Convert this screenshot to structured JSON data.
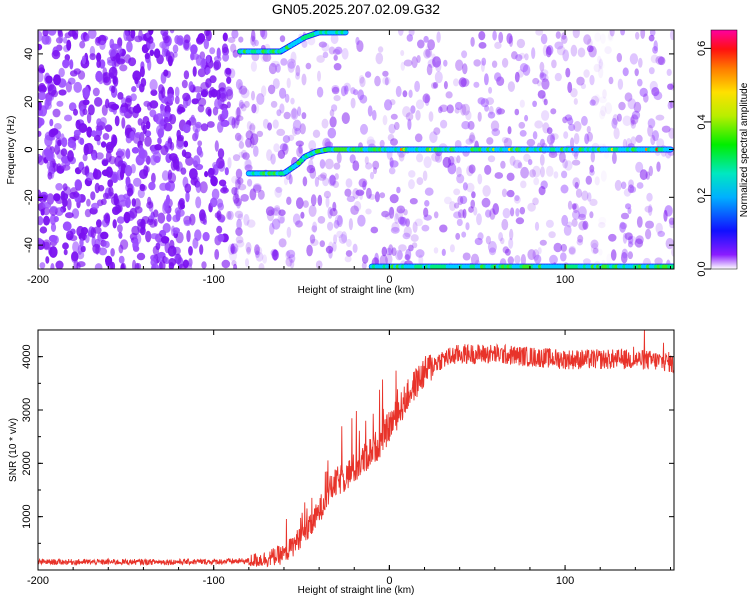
{
  "title": "GN05.2025.207.02.09.G32",
  "chart_data": [
    {
      "type": "heatmap",
      "xlabel": "Height of straight line (km)",
      "ylabel": "Frequency (Hz)",
      "xlim": [
        -200,
        162
      ],
      "ylim": [
        -50,
        50
      ],
      "xticks": [
        "-200",
        "-100",
        "0",
        "100"
      ],
      "yticks": [
        "40",
        "20",
        "0",
        "-20",
        "-40"
      ],
      "colorbar": {
        "label": "Normalized spectral amplitude",
        "range": [
          0.0,
          0.65
        ],
        "ticks": [
          "0.0",
          "0.2",
          "0.4",
          "0.6"
        ]
      },
      "tracks": [
        {
          "name": "main",
          "points": [
            [
              -80,
              -10
            ],
            [
              -60,
              -10
            ],
            [
              -52,
              -6
            ],
            [
              -48,
              -3
            ],
            [
              -42,
              -1
            ],
            [
              -35,
              0
            ],
            [
              0,
              0
            ],
            [
              160,
              0
            ]
          ]
        },
        {
          "name": "upper",
          "points": [
            [
              -85,
              41
            ],
            [
              -62,
              41
            ],
            [
              -55,
              44
            ],
            [
              -48,
              47
            ],
            [
              -40,
              49
            ],
            [
              -25,
              49
            ]
          ]
        },
        {
          "name": "bottom",
          "points": [
            [
              -10,
              -49
            ],
            [
              162,
              -49
            ]
          ]
        }
      ]
    },
    {
      "type": "line",
      "xlabel": "Height of straight line (km)",
      "ylabel": "SNR (10 * v/v)",
      "xlim": [
        -200,
        162
      ],
      "ylim": [
        0,
        4500
      ],
      "xticks": [
        "-200",
        "-100",
        "0",
        "100"
      ],
      "yticks": [
        "4000",
        "3000",
        "2000",
        "1000"
      ],
      "color": "#e8332a",
      "x": [
        -200,
        -150,
        -100,
        -80,
        -70,
        -60,
        -55,
        -50,
        -45,
        -40,
        -35,
        -30,
        -25,
        -20,
        -15,
        -10,
        -5,
        0,
        5,
        10,
        15,
        20,
        25,
        30,
        40,
        60,
        80,
        100,
        120,
        140,
        160,
        162
      ],
      "y": [
        150,
        150,
        155,
        170,
        210,
        300,
        450,
        650,
        800,
        1100,
        1450,
        1650,
        1750,
        1900,
        2050,
        2250,
        2400,
        2700,
        2950,
        3250,
        3500,
        3700,
        3850,
        3950,
        4050,
        4050,
        4000,
        3950,
        3950,
        3950,
        3900,
        3800
      ]
    }
  ]
}
